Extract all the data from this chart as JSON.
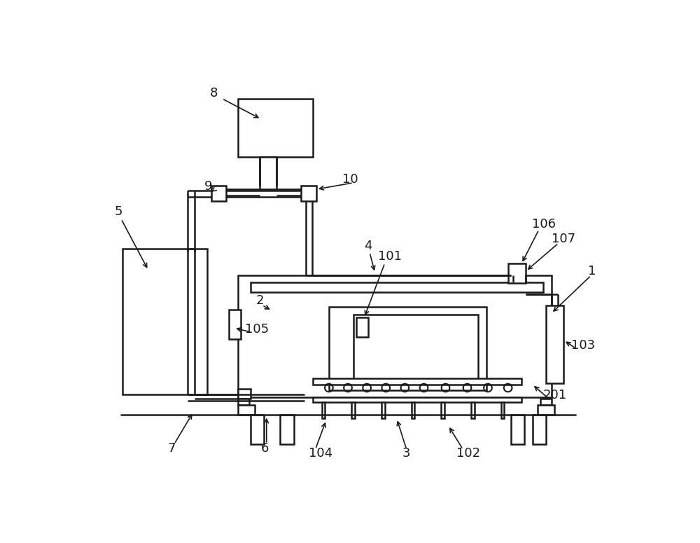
{
  "bg_color": "#ffffff",
  "line_color": "#1a1a1a",
  "lw": 1.8,
  "fig_w": 10.0,
  "fig_h": 7.75,
  "fs": 13
}
